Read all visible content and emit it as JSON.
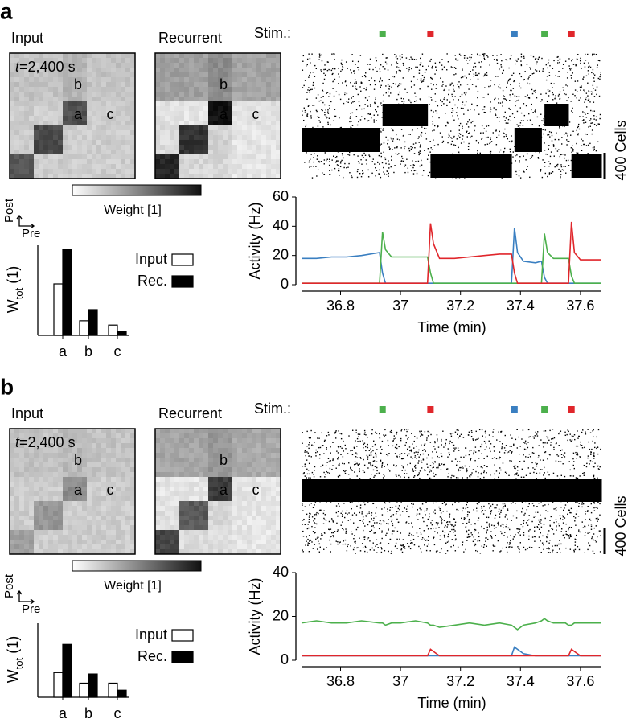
{
  "panels": [
    {
      "label": "a",
      "input_title": "Input",
      "recurrent_title": "Recurrent",
      "time_var": "t",
      "time_value": "=2,400 s",
      "heatmap_labels": [
        "a",
        "b",
        "c"
      ],
      "colorbar_label": "Weight [1]",
      "post": "Post",
      "pre": "Pre",
      "stim_label": "Stim.:",
      "scale_label": "400 Cells"
    },
    {
      "label": "b",
      "input_title": "Input",
      "recurrent_title": "Recurrent",
      "time_var": "t",
      "time_value": "=2,400 s",
      "heatmap_labels": [
        "a",
        "b",
        "c"
      ],
      "colorbar_label": "Weight [1]",
      "post": "Post",
      "pre": "Pre",
      "stim_label": "Stim.:",
      "scale_label": "400 Cells"
    }
  ],
  "chart_data": [
    {
      "type": "bar",
      "ylabel": {
        "main": "W",
        "sub": "tot",
        "rest": "(1)"
      },
      "categories": [
        "a",
        "b",
        "c"
      ],
      "series": [
        {
          "name": "Input",
          "color": "#ffffff",
          "values": [
            0.6,
            0.17,
            0.12
          ]
        },
        {
          "name": "Rec.",
          "color": "#000000",
          "values": [
            1.0,
            0.3,
            0.05
          ]
        }
      ],
      "ylim": [
        0,
        1.05
      ]
    },
    {
      "type": "line",
      "xlabel": "Time (min)",
      "ylabel": "Activity (Hz)",
      "x": [
        36.67,
        36.72,
        36.77,
        36.82,
        36.87,
        36.93,
        36.94,
        36.95,
        36.97,
        37.0,
        37.05,
        37.09,
        37.1,
        37.11,
        37.13,
        37.18,
        37.23,
        37.28,
        37.33,
        37.37,
        37.38,
        37.39,
        37.41,
        37.45,
        37.47,
        37.48,
        37.49,
        37.51,
        37.55,
        37.56,
        37.57,
        37.58,
        37.6,
        37.64,
        37.67
      ],
      "series": [
        {
          "color": "#3a7fc1",
          "values": [
            18,
            18,
            19,
            19,
            20,
            22,
            8,
            1,
            1,
            1,
            1,
            1,
            1,
            1,
            1,
            1,
            1,
            1,
            1,
            1,
            39,
            22,
            16,
            15,
            16,
            5,
            1,
            1,
            1,
            1,
            1,
            1,
            1,
            1,
            1
          ]
        },
        {
          "color": "#4cb04c",
          "values": [
            1,
            1,
            1,
            1,
            1,
            1,
            36,
            24,
            19,
            19,
            19,
            19,
            8,
            1,
            1,
            1,
            1,
            1,
            1,
            1,
            1,
            1,
            1,
            1,
            1,
            35,
            22,
            18,
            18,
            18,
            6,
            1,
            1,
            1,
            1
          ]
        },
        {
          "color": "#e0262b",
          "values": [
            1,
            1,
            1,
            1,
            1,
            1,
            1,
            1,
            1,
            1,
            1,
            1,
            42,
            28,
            18,
            18,
            19,
            20,
            21,
            21,
            8,
            1,
            1,
            1,
            1,
            1,
            1,
            1,
            1,
            1,
            43,
            22,
            17,
            17,
            17
          ]
        }
      ],
      "xlim": [
        36.67,
        37.67
      ],
      "xticks": [
        36.8,
        37,
        37.2,
        37.4,
        37.6
      ],
      "ylim": [
        0,
        60
      ],
      "yticks": [
        0,
        20,
        40,
        60
      ],
      "stimuli": {
        "x": [
          36.94,
          37.1,
          37.38,
          37.48,
          37.57
        ],
        "colors": [
          "#4cb04c",
          "#e0262b",
          "#3a7fc1",
          "#4cb04c",
          "#e0262b"
        ]
      }
    },
    {
      "type": "bar",
      "ylabel": {
        "main": "W",
        "sub": "tot",
        "rest": "(1)"
      },
      "categories": [
        "a",
        "b",
        "c"
      ],
      "series": [
        {
          "name": "Input",
          "color": "#ffffff",
          "values": [
            0.35,
            0.2,
            0.2
          ]
        },
        {
          "name": "Rec.",
          "color": "#000000",
          "values": [
            0.75,
            0.33,
            0.1
          ]
        }
      ],
      "ylim": [
        0,
        1.05
      ]
    },
    {
      "type": "line",
      "xlabel": "Time (min)",
      "ylabel": "Activity (Hz)",
      "x": [
        36.67,
        36.72,
        36.77,
        36.82,
        36.87,
        36.93,
        36.94,
        36.95,
        36.97,
        37.0,
        37.05,
        37.09,
        37.1,
        37.11,
        37.13,
        37.18,
        37.23,
        37.28,
        37.33,
        37.37,
        37.38,
        37.39,
        37.41,
        37.45,
        37.47,
        37.48,
        37.49,
        37.51,
        37.55,
        37.56,
        37.57,
        37.58,
        37.6,
        37.64,
        37.67
      ],
      "series": [
        {
          "color": "#3a7fc1",
          "values": [
            2,
            2,
            2,
            2,
            2,
            2,
            2,
            2,
            2,
            2,
            2,
            2,
            2,
            2,
            2,
            2,
            2,
            2,
            2,
            2,
            6,
            5,
            3,
            2,
            2,
            2,
            2,
            2,
            2,
            2,
            2,
            2,
            2,
            2,
            2
          ]
        },
        {
          "color": "#4cb04c",
          "values": [
            17,
            18,
            17,
            17,
            18,
            17,
            17,
            16,
            17,
            17,
            18,
            17,
            16,
            16,
            15,
            16,
            17,
            16,
            17,
            16,
            15,
            14,
            16,
            17,
            18,
            19,
            18,
            17,
            17,
            16,
            16,
            17,
            17,
            17,
            17
          ]
        },
        {
          "color": "#e0262b",
          "values": [
            2,
            2,
            2,
            2,
            2,
            2,
            2,
            2,
            2,
            2,
            2,
            2,
            5,
            4,
            2,
            2,
            2,
            2,
            2,
            2,
            2,
            2,
            2,
            2,
            2,
            2,
            2,
            2,
            2,
            2,
            5,
            4,
            2,
            2,
            2
          ]
        }
      ],
      "xlim": [
        36.67,
        37.67
      ],
      "xticks": [
        36.8,
        37,
        37.2,
        37.4,
        37.6
      ],
      "ylim": [
        0,
        40
      ],
      "yticks": [
        0,
        20,
        40
      ],
      "stimuli": {
        "x": [
          36.94,
          37.1,
          37.38,
          37.48,
          37.57
        ],
        "colors": [
          "#4cb04c",
          "#e0262b",
          "#3a7fc1",
          "#4cb04c",
          "#e0262b"
        ]
      }
    }
  ]
}
